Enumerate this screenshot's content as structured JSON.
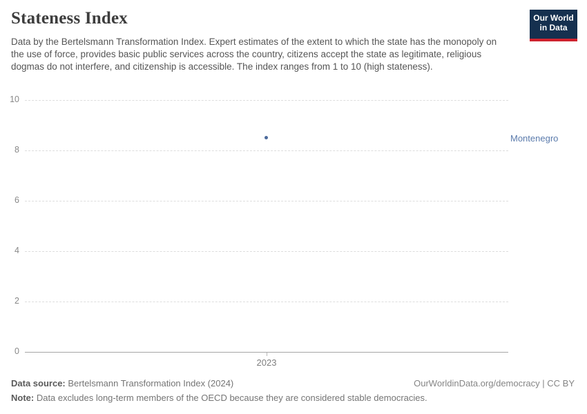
{
  "header": {
    "title": "Stateness Index",
    "subtitle": "Data by the Bertelsmann Transformation Index. Expert estimates of the extent to which the state has the monopoly on the use of force, provides basic public services across the country, citizens accept the state as legitimate, religious dogmas do not interfere, and citizenship is accessible. The index ranges from 1 to 10 (high stateness).",
    "logo": {
      "line1": "Our World",
      "line2": "in Data",
      "bg_color": "#15304f",
      "accent_color": "#d0232e"
    }
  },
  "chart_data": {
    "type": "scatter",
    "title": "Stateness Index",
    "x": [
      2023
    ],
    "series": [
      {
        "name": "Montenegro",
        "values": [
          8.5
        ],
        "color": "#4c6a9c",
        "label_color": "#5b7bac"
      }
    ],
    "xlabel": "",
    "ylabel": "",
    "ylim": [
      0,
      10
    ],
    "yticks": [
      0,
      2,
      4,
      6,
      8,
      10
    ],
    "xticks": [
      "2023"
    ],
    "grid": "horizontal-dashed",
    "legend_position": "entity-label-right"
  },
  "footer": {
    "datasource_label": "Data source:",
    "datasource_value": " Bertelsmann Transformation Index (2024)",
    "attribution": "OurWorldinData.org/democracy | CC BY",
    "note_label": "Note:",
    "note_value": " Data excludes long-term members of the OECD because they are considered stable democracies."
  }
}
